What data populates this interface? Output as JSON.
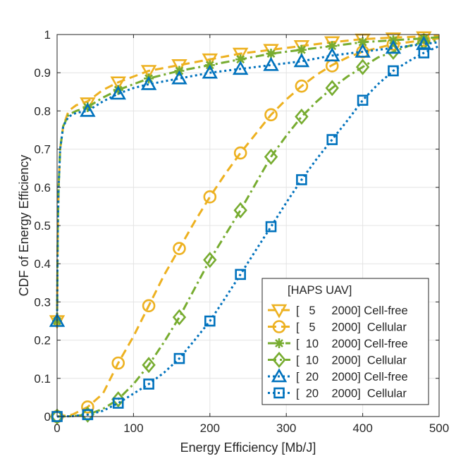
{
  "chart_data": {
    "type": "line",
    "title": "",
    "xlabel": "Energy Efficiency [Mb/J]",
    "ylabel": "CDF of Energy Efficiency",
    "xlim": [
      0,
      500
    ],
    "ylim": [
      0,
      1
    ],
    "grid": true,
    "x_ticks": [
      "0",
      "100",
      "200",
      "300",
      "400",
      "500"
    ],
    "y_ticks": [
      "0",
      "0.1",
      "0.2",
      "0.3",
      "0.4",
      "0.5",
      "0.6",
      "0.7",
      "0.8",
      "0.9",
      "1"
    ],
    "x_tick_values": [
      0,
      100,
      200,
      300,
      400,
      500
    ],
    "y_tick_values": [
      0,
      0.1,
      0.2,
      0.3,
      0.4,
      0.5,
      0.6,
      0.7,
      0.8,
      0.9,
      1
    ],
    "legend": {
      "position": "bottom-right",
      "header": "[HAPS UAV]",
      "entries": [
        "[   5     2000] Cell-free",
        "[   5     2000]  Cellular",
        "[  10    2000] Cell-free",
        "[  10    2000]  Cellular",
        "[  20    2000] Cell-free",
        "[  20    2000]  Cellular"
      ]
    },
    "series": [
      {
        "name": "[5 2000] Cell-free",
        "color": "#EDB120",
        "line": "dash",
        "marker": "triangle-down",
        "curve": [
          [
            0,
            0.25
          ],
          [
            0.5,
            0.4
          ],
          [
            1,
            0.5
          ],
          [
            2,
            0.6
          ],
          [
            4,
            0.7
          ],
          [
            8,
            0.76
          ],
          [
            15,
            0.8
          ],
          [
            25,
            0.815
          ],
          [
            40,
            0.825
          ],
          [
            60,
            0.855
          ],
          [
            80,
            0.875
          ],
          [
            100,
            0.89
          ],
          [
            120,
            0.905
          ],
          [
            160,
            0.92
          ],
          [
            200,
            0.935
          ],
          [
            240,
            0.95
          ],
          [
            280,
            0.96
          ],
          [
            320,
            0.97
          ],
          [
            360,
            0.98
          ],
          [
            400,
            0.988
          ],
          [
            440,
            0.992
          ],
          [
            480,
            0.995
          ],
          [
            500,
            0.997
          ]
        ],
        "markers": [
          [
            0,
            0.25
          ],
          [
            40,
            0.82
          ],
          [
            80,
            0.875
          ],
          [
            120,
            0.905
          ],
          [
            160,
            0.92
          ],
          [
            200,
            0.935
          ],
          [
            240,
            0.95
          ],
          [
            280,
            0.96
          ],
          [
            320,
            0.97
          ],
          [
            360,
            0.98
          ],
          [
            400,
            0.987
          ],
          [
            440,
            0.99
          ],
          [
            480,
            0.993
          ]
        ]
      },
      {
        "name": "[5 2000] Cellular",
        "color": "#EDB120",
        "line": "dash",
        "marker": "circle",
        "curve": [
          [
            0,
            0
          ],
          [
            20,
            0.005
          ],
          [
            40,
            0.025
          ],
          [
            60,
            0.06
          ],
          [
            80,
            0.14
          ],
          [
            100,
            0.21
          ],
          [
            120,
            0.29
          ],
          [
            140,
            0.37
          ],
          [
            160,
            0.44
          ],
          [
            180,
            0.51
          ],
          [
            200,
            0.575
          ],
          [
            220,
            0.635
          ],
          [
            240,
            0.69
          ],
          [
            260,
            0.74
          ],
          [
            280,
            0.79
          ],
          [
            300,
            0.83
          ],
          [
            320,
            0.865
          ],
          [
            340,
            0.895
          ],
          [
            360,
            0.92
          ],
          [
            380,
            0.94
          ],
          [
            400,
            0.955
          ],
          [
            420,
            0.965
          ],
          [
            440,
            0.975
          ],
          [
            460,
            0.98
          ],
          [
            480,
            0.985
          ],
          [
            500,
            0.99
          ]
        ],
        "markers": [
          [
            0,
            0
          ],
          [
            40,
            0.025
          ],
          [
            80,
            0.14
          ],
          [
            120,
            0.29
          ],
          [
            160,
            0.44
          ],
          [
            200,
            0.575
          ],
          [
            240,
            0.69
          ],
          [
            280,
            0.79
          ],
          [
            320,
            0.865
          ],
          [
            360,
            0.918
          ],
          [
            400,
            0.955
          ],
          [
            440,
            0.975
          ],
          [
            480,
            0.985
          ]
        ]
      },
      {
        "name": "[10 2000] Cell-free",
        "color": "#77AC30",
        "line": "dashdot",
        "marker": "asterisk",
        "curve": [
          [
            0,
            0.25
          ],
          [
            0.5,
            0.4
          ],
          [
            1,
            0.5
          ],
          [
            2,
            0.6
          ],
          [
            4,
            0.7
          ],
          [
            8,
            0.76
          ],
          [
            15,
            0.79
          ],
          [
            25,
            0.8
          ],
          [
            40,
            0.81
          ],
          [
            60,
            0.835
          ],
          [
            80,
            0.855
          ],
          [
            100,
            0.87
          ],
          [
            120,
            0.885
          ],
          [
            160,
            0.905
          ],
          [
            200,
            0.92
          ],
          [
            240,
            0.935
          ],
          [
            280,
            0.95
          ],
          [
            320,
            0.96
          ],
          [
            360,
            0.97
          ],
          [
            400,
            0.98
          ],
          [
            440,
            0.985
          ],
          [
            480,
            0.99
          ],
          [
            500,
            0.993
          ]
        ],
        "markers": [
          [
            0,
            0.25
          ],
          [
            40,
            0.81
          ],
          [
            80,
            0.855
          ],
          [
            120,
            0.885
          ],
          [
            160,
            0.905
          ],
          [
            200,
            0.92
          ],
          [
            240,
            0.935
          ],
          [
            280,
            0.95
          ],
          [
            320,
            0.96
          ],
          [
            360,
            0.97
          ],
          [
            400,
            0.98
          ],
          [
            440,
            0.985
          ],
          [
            480,
            0.99
          ]
        ]
      },
      {
        "name": "[10 2000] Cellular",
        "color": "#77AC30",
        "line": "dashdot",
        "marker": "diamond",
        "curve": [
          [
            0,
            0
          ],
          [
            20,
            0.001
          ],
          [
            40,
            0.005
          ],
          [
            60,
            0.02
          ],
          [
            80,
            0.045
          ],
          [
            100,
            0.085
          ],
          [
            120,
            0.135
          ],
          [
            140,
            0.195
          ],
          [
            160,
            0.26
          ],
          [
            180,
            0.335
          ],
          [
            200,
            0.41
          ],
          [
            220,
            0.475
          ],
          [
            240,
            0.54
          ],
          [
            260,
            0.61
          ],
          [
            280,
            0.68
          ],
          [
            300,
            0.735
          ],
          [
            320,
            0.785
          ],
          [
            340,
            0.825
          ],
          [
            360,
            0.86
          ],
          [
            380,
            0.89
          ],
          [
            400,
            0.915
          ],
          [
            420,
            0.94
          ],
          [
            440,
            0.955
          ],
          [
            460,
            0.97
          ],
          [
            480,
            0.98
          ],
          [
            500,
            0.985
          ]
        ],
        "markers": [
          [
            0,
            0
          ],
          [
            40,
            0.005
          ],
          [
            80,
            0.045
          ],
          [
            120,
            0.135
          ],
          [
            160,
            0.26
          ],
          [
            200,
            0.41
          ],
          [
            240,
            0.54
          ],
          [
            280,
            0.68
          ],
          [
            320,
            0.785
          ],
          [
            360,
            0.86
          ],
          [
            400,
            0.915
          ],
          [
            440,
            0.955
          ],
          [
            480,
            0.98
          ]
        ]
      },
      {
        "name": "[20 2000] Cell-free",
        "color": "#0072BD",
        "line": "dot",
        "marker": "triangle-up",
        "curve": [
          [
            0,
            0.25
          ],
          [
            0.5,
            0.4
          ],
          [
            1,
            0.5
          ],
          [
            2,
            0.6
          ],
          [
            4,
            0.7
          ],
          [
            8,
            0.76
          ],
          [
            15,
            0.785
          ],
          [
            25,
            0.795
          ],
          [
            40,
            0.8
          ],
          [
            60,
            0.825
          ],
          [
            80,
            0.845
          ],
          [
            100,
            0.86
          ],
          [
            120,
            0.87
          ],
          [
            160,
            0.885
          ],
          [
            200,
            0.9
          ],
          [
            240,
            0.91
          ],
          [
            280,
            0.92
          ],
          [
            320,
            0.93
          ],
          [
            360,
            0.945
          ],
          [
            400,
            0.955
          ],
          [
            440,
            0.965
          ],
          [
            480,
            0.975
          ],
          [
            500,
            0.98
          ]
        ],
        "markers": [
          [
            0,
            0.25
          ],
          [
            40,
            0.8
          ],
          [
            80,
            0.845
          ],
          [
            120,
            0.87
          ],
          [
            160,
            0.885
          ],
          [
            200,
            0.9
          ],
          [
            240,
            0.91
          ],
          [
            280,
            0.92
          ],
          [
            320,
            0.93
          ],
          [
            360,
            0.945
          ],
          [
            400,
            0.955
          ],
          [
            440,
            0.965
          ],
          [
            480,
            0.975
          ]
        ]
      },
      {
        "name": "[20 2000] Cellular",
        "color": "#0072BD",
        "line": "dot",
        "marker": "square",
        "curve": [
          [
            0,
            0
          ],
          [
            20,
            0.001
          ],
          [
            40,
            0.005
          ],
          [
            60,
            0.015
          ],
          [
            80,
            0.035
          ],
          [
            100,
            0.06
          ],
          [
            120,
            0.085
          ],
          [
            140,
            0.115
          ],
          [
            160,
            0.152
          ],
          [
            180,
            0.2
          ],
          [
            200,
            0.25
          ],
          [
            220,
            0.31
          ],
          [
            240,
            0.372
          ],
          [
            260,
            0.435
          ],
          [
            280,
            0.497
          ],
          [
            300,
            0.56
          ],
          [
            320,
            0.62
          ],
          [
            340,
            0.675
          ],
          [
            360,
            0.725
          ],
          [
            380,
            0.775
          ],
          [
            400,
            0.828
          ],
          [
            420,
            0.87
          ],
          [
            440,
            0.905
          ],
          [
            460,
            0.93
          ],
          [
            480,
            0.952
          ],
          [
            500,
            0.97
          ]
        ],
        "markers": [
          [
            0,
            0
          ],
          [
            40,
            0.005
          ],
          [
            80,
            0.035
          ],
          [
            120,
            0.085
          ],
          [
            160,
            0.152
          ],
          [
            200,
            0.25
          ],
          [
            240,
            0.372
          ],
          [
            280,
            0.497
          ],
          [
            320,
            0.62
          ],
          [
            360,
            0.725
          ],
          [
            400,
            0.828
          ],
          [
            440,
            0.905
          ],
          [
            480,
            0.952
          ]
        ]
      }
    ]
  }
}
